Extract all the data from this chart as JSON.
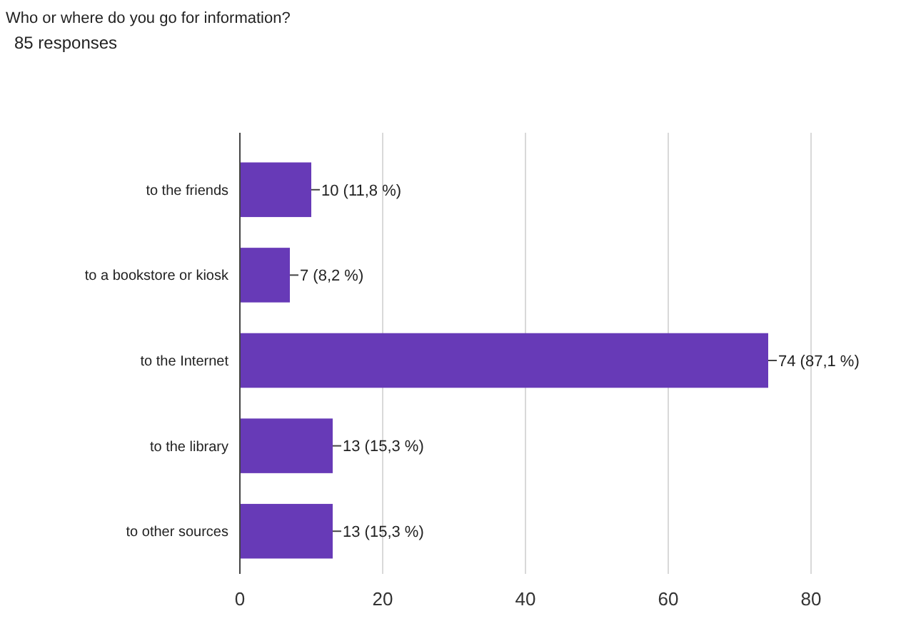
{
  "chart_data": {
    "type": "bar",
    "orientation": "horizontal",
    "title": "Who or where do you go for information?",
    "subtitle": "85 responses",
    "categories": [
      "to the friends",
      "to a bookstore or kiosk",
      "to the Internet",
      "to the library",
      "to other sources"
    ],
    "values": [
      10,
      7,
      74,
      13,
      13
    ],
    "value_labels": [
      "10 (11,8 %)",
      "7 (8,2 %)",
      "74 (87,1 %)",
      "13 (15,3 %)",
      "13 (15,3 %)"
    ],
    "color": "#673ab7",
    "xlim": [
      0,
      80
    ],
    "xticks": [
      0,
      20,
      40,
      60,
      80
    ],
    "grid": "x"
  }
}
